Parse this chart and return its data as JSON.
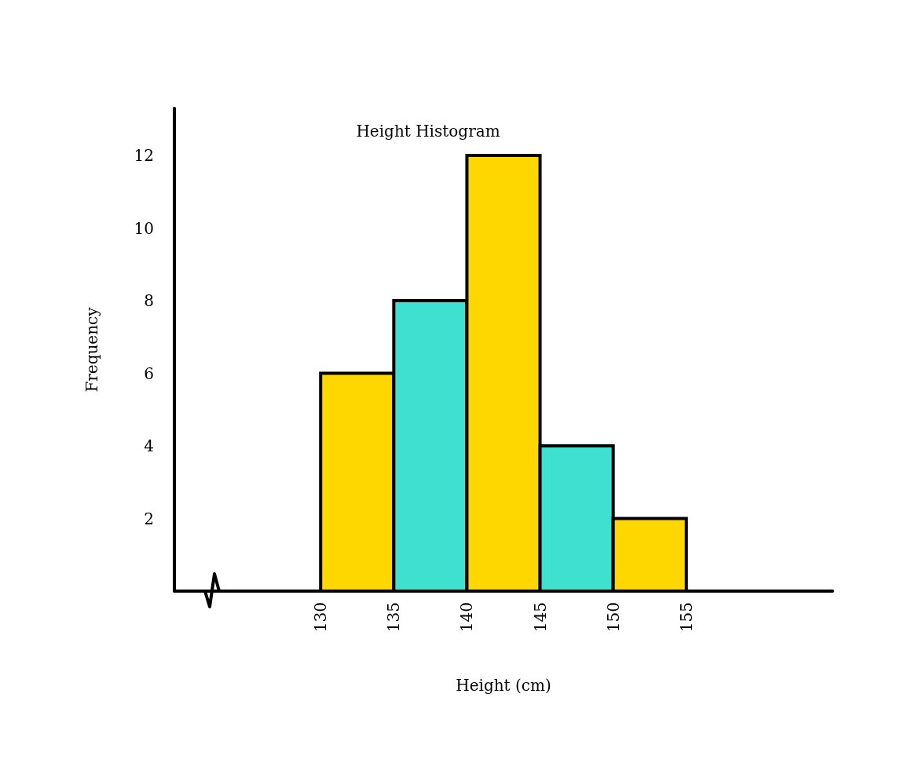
{
  "chart_data": {
    "type": "histogram",
    "title": "Height Histogram",
    "xlabel": "Height (cm)",
    "ylabel": "Frequency",
    "bins": [
      130,
      135,
      140,
      145,
      150,
      155
    ],
    "values": [
      6,
      8,
      12,
      4,
      2
    ],
    "colors": [
      "#ffd700",
      "#40e0d0",
      "#ffd700",
      "#40e0d0",
      "#ffd700"
    ],
    "xlim": [
      120,
      165
    ],
    "xticks": [
      130,
      135,
      140,
      145,
      150,
      155
    ],
    "ylim": [
      0,
      13.3
    ],
    "yticks": [
      2,
      4,
      6,
      8,
      10,
      12
    ],
    "grid": false
  }
}
